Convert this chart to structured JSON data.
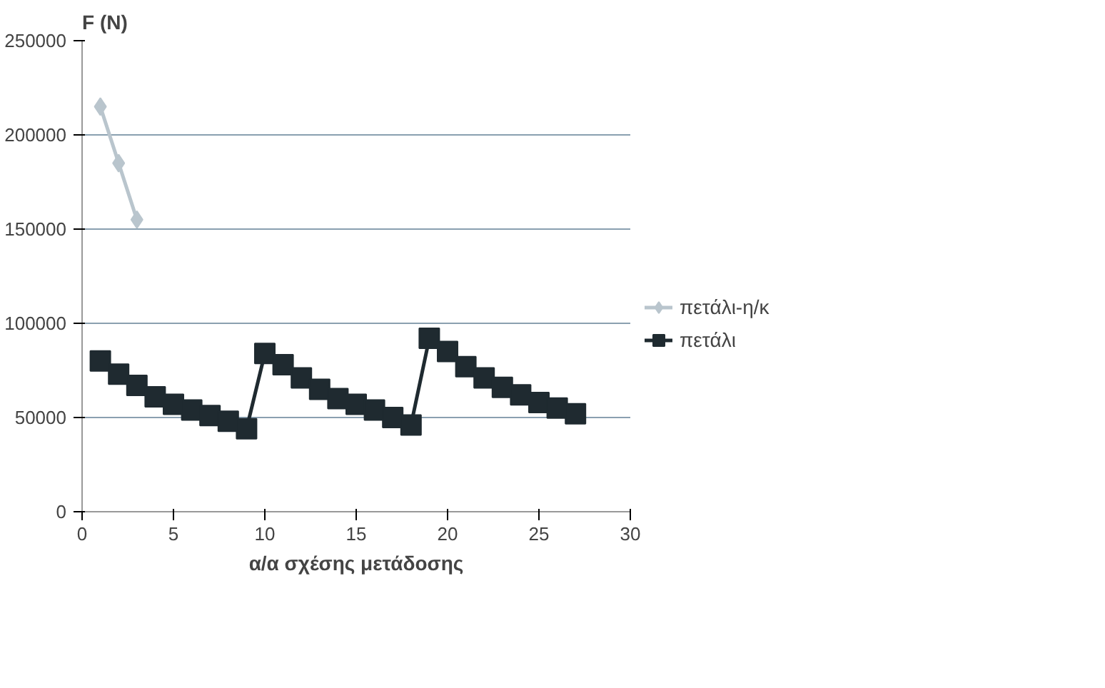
{
  "chart_data": {
    "type": "line",
    "ylabel": "F (N)",
    "xlabel": "α/α σχέσης μετάδοσης",
    "xlim": [
      0,
      30
    ],
    "xticks": [
      0,
      5,
      10,
      15,
      20,
      25,
      30
    ],
    "ylim": [
      0,
      250000
    ],
    "yticks": [
      0,
      50000,
      100000,
      150000,
      200000,
      250000
    ],
    "grid": "y",
    "legend": "right",
    "series": [
      {
        "name": "πετάλι-η/κ",
        "color": "#b9c5cd",
        "marker": "diamond",
        "x": [
          1,
          2,
          3
        ],
        "values": [
          215000,
          185000,
          155000
        ]
      },
      {
        "name": "πετάλι",
        "color": "#1f2a30",
        "marker": "square",
        "x": [
          1,
          2,
          3,
          4,
          5,
          6,
          7,
          8,
          9,
          10,
          11,
          12,
          13,
          14,
          15,
          16,
          17,
          18,
          19,
          20,
          21,
          22,
          23,
          24,
          25,
          26,
          27
        ],
        "values": [
          80000,
          73000,
          67000,
          61000,
          57000,
          54000,
          51000,
          48000,
          44000,
          84000,
          78000,
          71000,
          65000,
          60000,
          57000,
          54000,
          50000,
          46000,
          92000,
          85000,
          77000,
          71000,
          66000,
          62000,
          58000,
          55000,
          52000
        ]
      }
    ]
  }
}
